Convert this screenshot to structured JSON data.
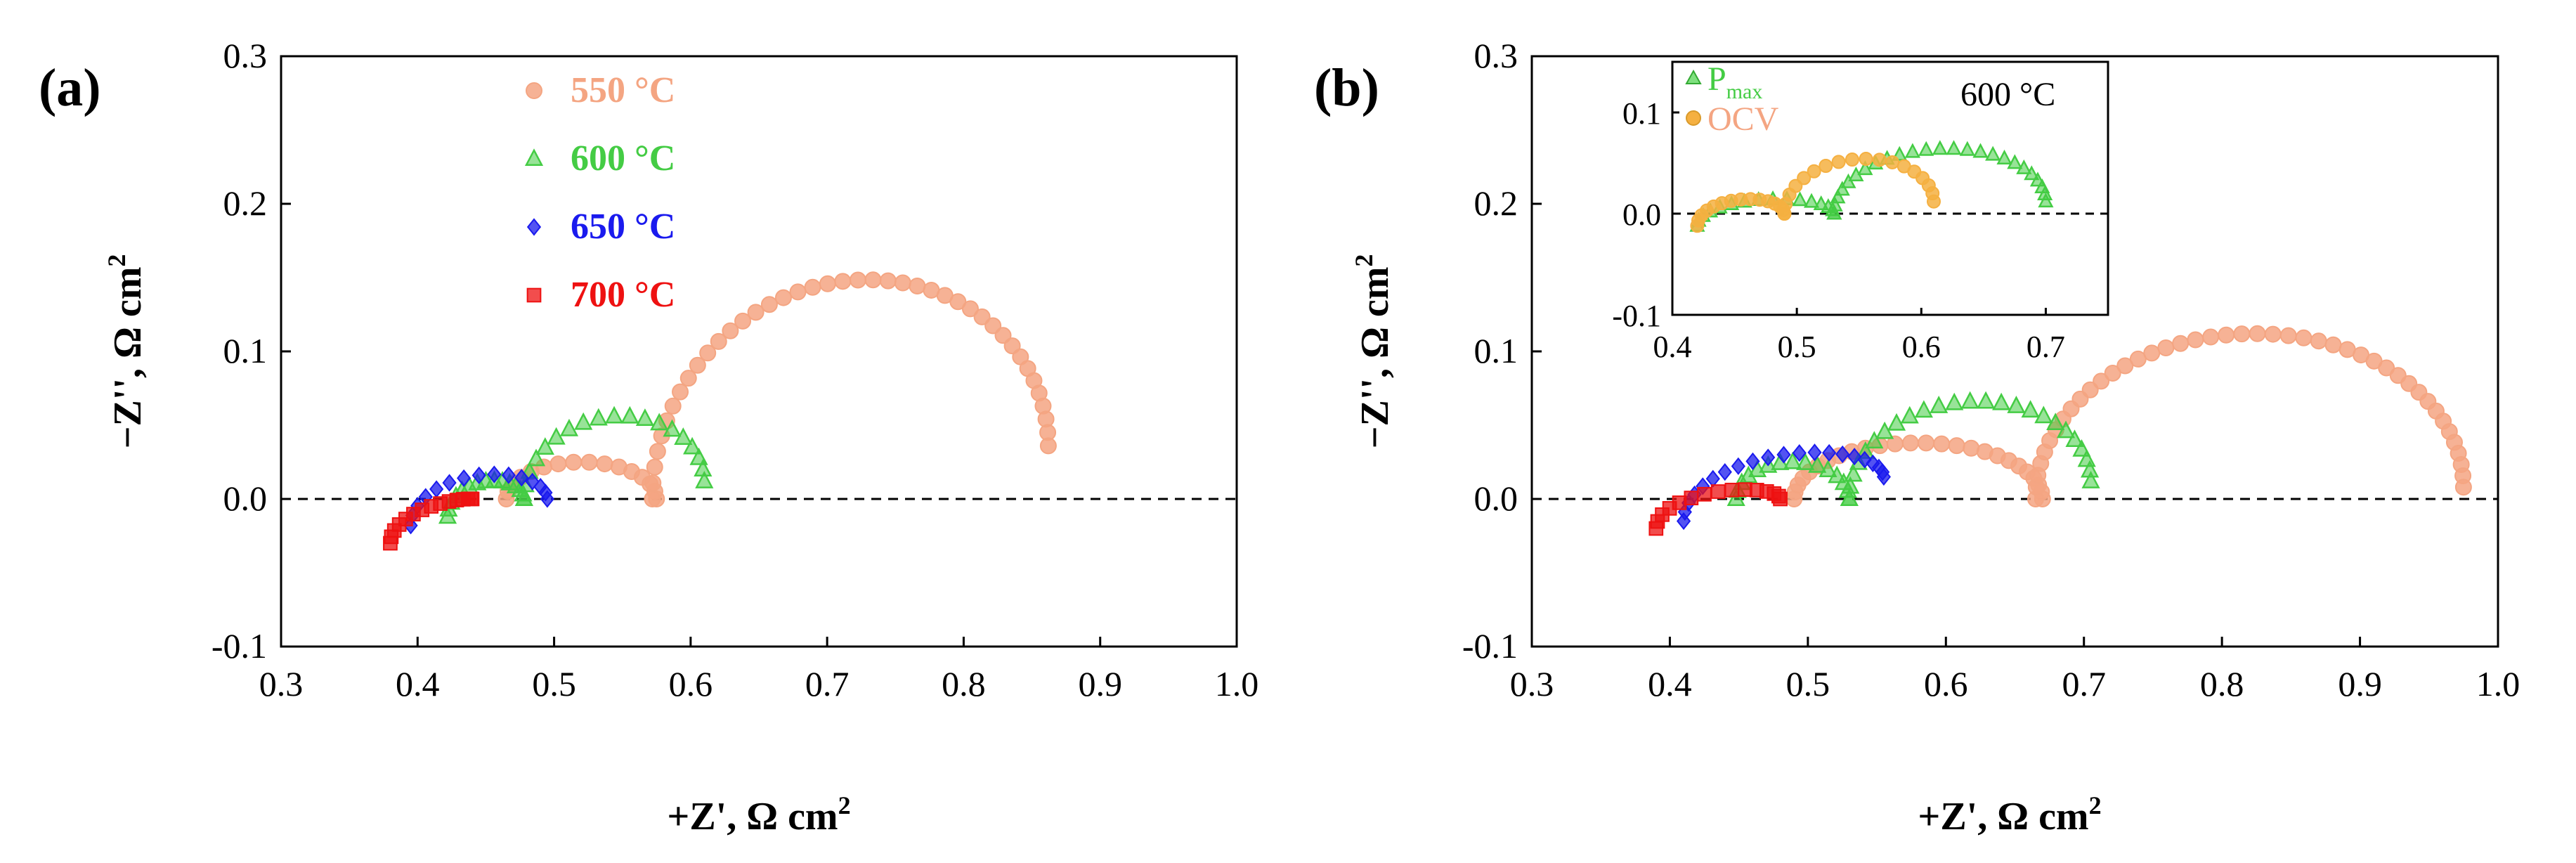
{
  "figure": {
    "panels": [
      {
        "label": "(a)",
        "xlabel": "+Z', Ω cm",
        "xlabel_sup": "2",
        "ylabel": "−Z'', Ω cm",
        "ylabel_sup": "2"
      },
      {
        "label": "(b)",
        "xlabel": "+Z', Ω cm",
        "xlabel_sup": "2",
        "ylabel": "−Z'', Ω cm",
        "ylabel_sup": "2",
        "inset": {
          "temp_label": "600 °C",
          "legend": [
            {
              "text": "P",
              "sub": "max",
              "color": "#44cc44",
              "marker": "triangle"
            },
            {
              "text": "OCV",
              "color": "#f5b041",
              "marker": "circle"
            }
          ]
        }
      }
    ]
  },
  "chart_data": [
    {
      "type": "scatter",
      "panel": "a",
      "title": "",
      "xlabel": "+Z', Ω cm2",
      "ylabel": "−Z'', Ω cm2",
      "xlim": [
        0.3,
        1.0
      ],
      "ylim": [
        -0.1,
        0.3
      ],
      "xticks": [
        "0.3",
        "0.4",
        "0.5",
        "0.6",
        "0.7",
        "0.8",
        "0.9",
        "1.0"
      ],
      "yticks": [
        "-0.1",
        "0.0",
        "0.1",
        "0.2",
        "0.3"
      ],
      "zero_line": "dashed",
      "legend_position": "top-left",
      "series": [
        {
          "name": "550 °C",
          "color": "#f4a582",
          "marker": "circle",
          "segments": [
            {
              "x0": 0.465,
              "x1": 0.575,
              "h": 0.025
            },
            {
              "x0": 0.572,
              "x1": 0.862,
              "h": 0.13,
              "y_end": 0.036
            }
          ]
        },
        {
          "name": "600 °C",
          "color": "#44cc44",
          "marker": "triangle",
          "segments": [
            {
              "x0": 0.422,
              "x1": 0.478,
              "h": 0.018,
              "y_start": -0.012
            },
            {
              "x0": 0.478,
              "x1": 0.61,
              "h": 0.05,
              "y_end": 0.012
            }
          ]
        },
        {
          "name": "650 °C",
          "color": "#1a1aee",
          "marker": "diamond",
          "segments": [
            {
              "x0": 0.395,
              "x1": 0.495,
              "h": 0.025,
              "y_start": -0.018
            }
          ]
        },
        {
          "name": "700 °C",
          "color": "#ee1111",
          "marker": "square",
          "segments": [
            {
              "x0": 0.38,
              "x1": 0.44,
              "h": 0.01,
              "y_start": -0.03
            }
          ]
        }
      ]
    },
    {
      "type": "scatter",
      "panel": "b",
      "title": "",
      "xlabel": "+Z', Ω cm2",
      "ylabel": "−Z'', Ω cm2",
      "xlim": [
        0.3,
        1.0
      ],
      "ylim": [
        -0.1,
        0.3
      ],
      "xticks": [
        "0.3",
        "0.4",
        "0.5",
        "0.6",
        "0.7",
        "0.8",
        "0.9",
        "1.0"
      ],
      "yticks": [
        "-0.1",
        "0.0",
        "0.1",
        "0.2",
        "0.3"
      ],
      "zero_line": "dashed",
      "series": [
        {
          "name": "550 °C",
          "color": "#f4a582",
          "marker": "circle",
          "segments": [
            {
              "x0": 0.49,
              "x1": 0.67,
              "h": 0.038
            },
            {
              "x0": 0.665,
              "x1": 0.975,
              "h": 0.108,
              "y_end": 0.008
            }
          ]
        },
        {
          "name": "600 °C",
          "color": "#44cc44",
          "marker": "triangle",
          "segments": [
            {
              "x0": 0.448,
              "x1": 0.53,
              "h": 0.025,
              "y_start": 0.0
            },
            {
              "x0": 0.53,
              "x1": 0.705,
              "h": 0.06,
              "y_end": 0.012
            }
          ]
        },
        {
          "name": "650 °C",
          "color": "#1a1aee",
          "marker": "diamond",
          "segments": [
            {
              "x0": 0.41,
              "x1": 0.555,
              "h": 0.03,
              "y_start": -0.015,
              "y_end": 0.015
            }
          ]
        },
        {
          "name": "700 °C",
          "color": "#ee1111",
          "marker": "square",
          "segments": [
            {
              "x0": 0.39,
              "x1": 0.48,
              "h": 0.015,
              "y_start": -0.02
            }
          ]
        }
      ]
    },
    {
      "type": "scatter",
      "panel": "b-inset",
      "title": "600 °C",
      "xlim": [
        0.4,
        0.75
      ],
      "ylim": [
        -0.1,
        0.15
      ],
      "xticks": [
        "0.4",
        "0.5",
        "0.6",
        "0.7"
      ],
      "yticks": [
        "-0.1",
        "0.0",
        "0.1"
      ],
      "zero_line": "dashed",
      "series": [
        {
          "name": "Pmax",
          "color": "#44cc44",
          "marker": "triangle",
          "segments": [
            {
              "x0": 0.42,
              "x1": 0.53,
              "h": 0.02,
              "y_start": -0.012
            },
            {
              "x0": 0.53,
              "x1": 0.7,
              "h": 0.058,
              "y_end": 0.012
            }
          ]
        },
        {
          "name": "OCV",
          "color": "#f5b041",
          "marker": "circle",
          "segments": [
            {
              "x0": 0.42,
              "x1": 0.49,
              "h": 0.02,
              "y_start": -0.012
            },
            {
              "x0": 0.49,
              "x1": 0.61,
              "h": 0.048,
              "y_end": 0.012
            }
          ]
        }
      ]
    }
  ]
}
